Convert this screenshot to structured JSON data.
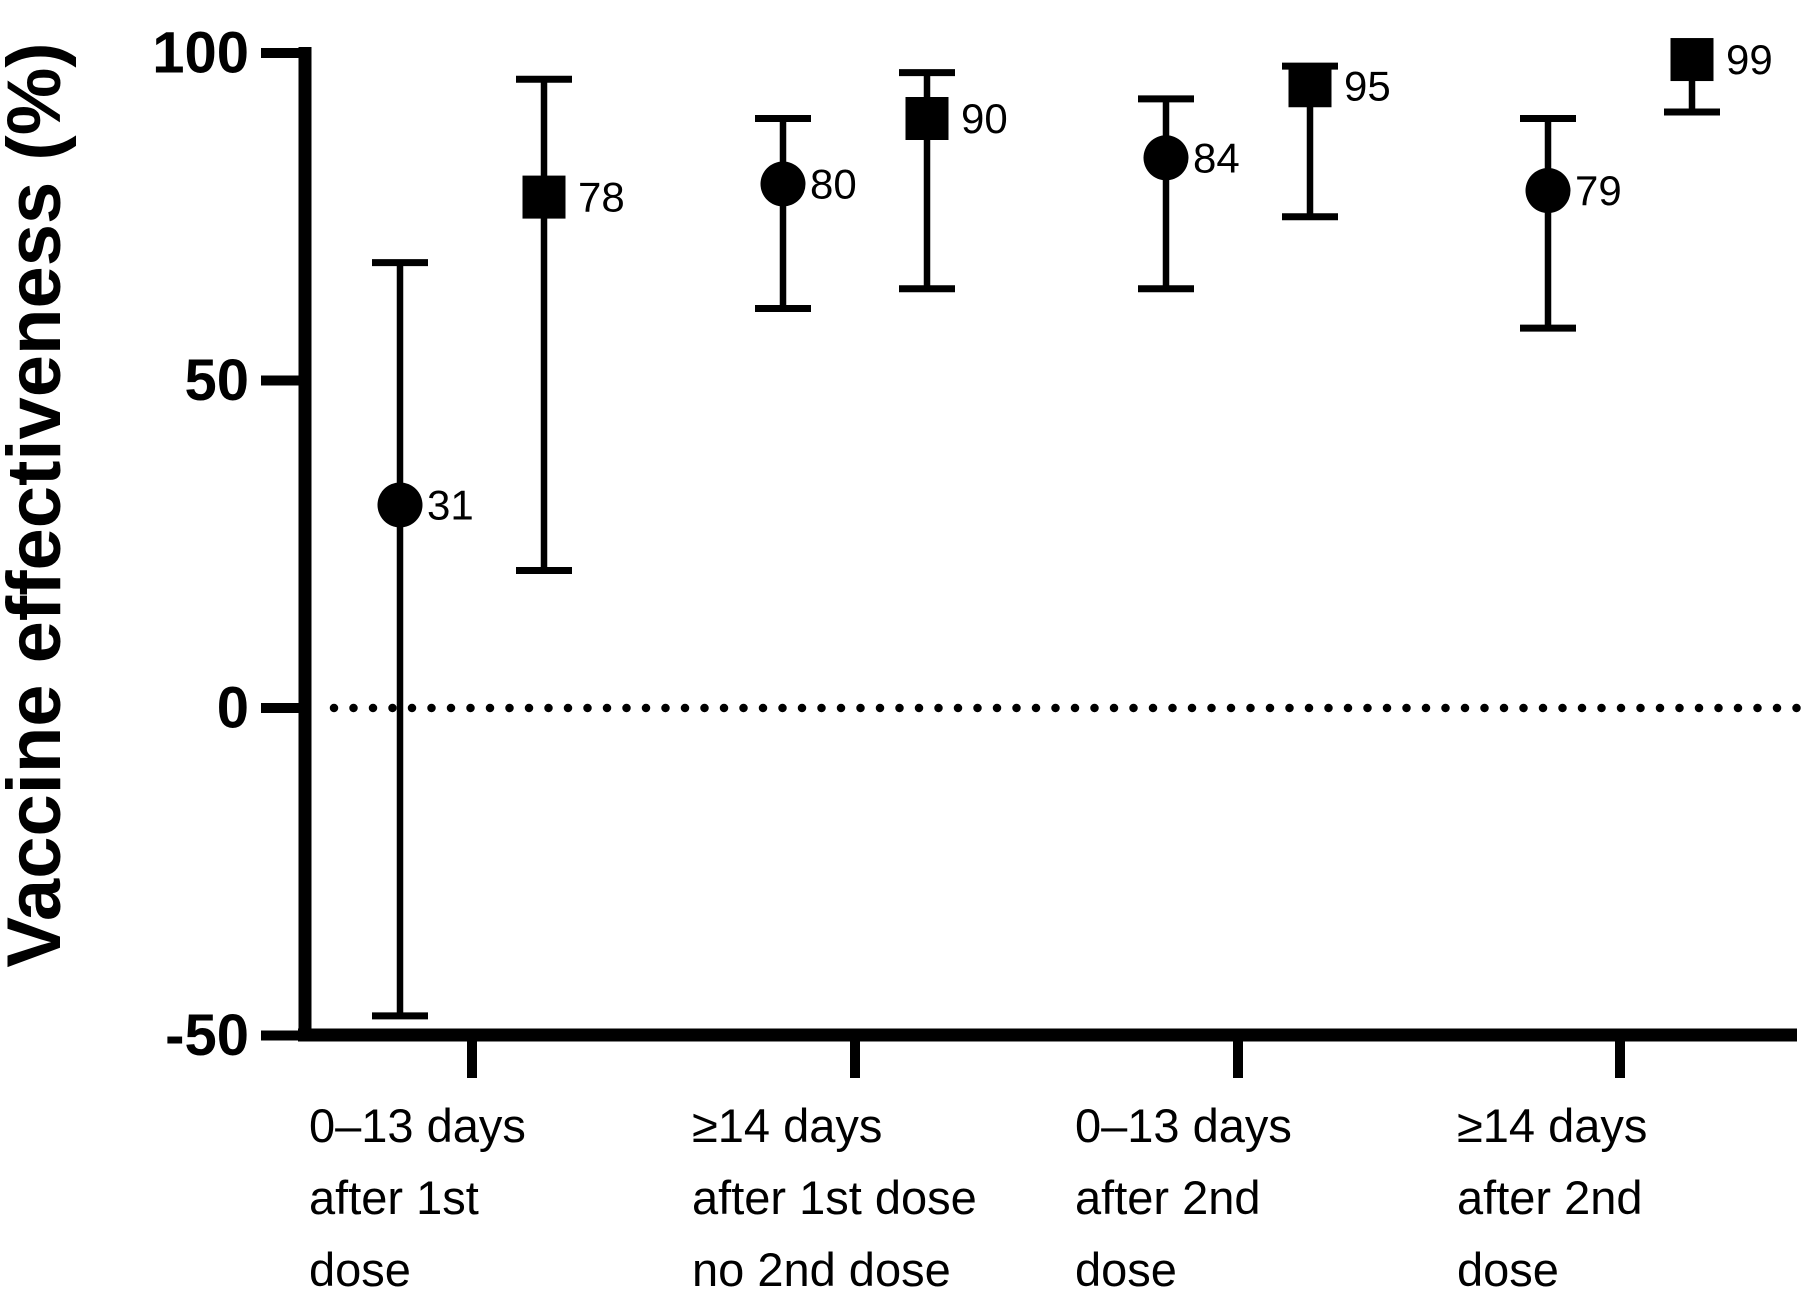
{
  "chart_data": {
    "type": "scatter",
    "subtype": "dot-and-whisker forest plot with 95% CI error bars",
    "title": "",
    "xlabel": "",
    "ylabel": "Vaccine effectiveness (%)",
    "ylim": [
      -50,
      100
    ],
    "grid": false,
    "legend": "none",
    "zero_reference_line": {
      "value": 0,
      "style": "dotted"
    },
    "yticks": [
      {
        "value": 100,
        "label": "100"
      },
      {
        "value": 50,
        "label": "50"
      },
      {
        "value": 0,
        "label": "0"
      },
      {
        "value": -50,
        "label": "-50"
      }
    ],
    "categories": [
      {
        "id": "0-13-days-after-1st-dose",
        "lines": [
          "0–13 days",
          "after 1st",
          "dose"
        ]
      },
      {
        "id": "14plus-days-after-1st-dose",
        "lines": [
          "≥14 days",
          "after 1st dose",
          "no 2nd dose"
        ]
      },
      {
        "id": "0-13-days-after-2nd-dose",
        "lines": [
          "0–13 days",
          "after 2nd",
          "dose"
        ]
      },
      {
        "id": "14plus-days-after-2nd-dose",
        "lines": [
          "≥14 days",
          "after 2nd",
          "dose"
        ]
      }
    ],
    "series": [
      {
        "name": "circle-marker-series",
        "marker": "circle",
        "points": [
          {
            "category": 0,
            "value": 31,
            "ci_low": -47,
            "ci_high": 68,
            "label": "31"
          },
          {
            "category": 1,
            "value": 80,
            "ci_low": 61,
            "ci_high": 90,
            "label": "80"
          },
          {
            "category": 2,
            "value": 84,
            "ci_low": 64,
            "ci_high": 93,
            "label": "84"
          },
          {
            "category": 3,
            "value": 79,
            "ci_low": 58,
            "ci_high": 90,
            "label": "79"
          }
        ]
      },
      {
        "name": "square-marker-series",
        "marker": "square",
        "points": [
          {
            "category": 0,
            "value": 78,
            "ci_low": 21,
            "ci_high": 96,
            "label": "78"
          },
          {
            "category": 1,
            "value": 90,
            "ci_low": 64,
            "ci_high": 97,
            "label": "90"
          },
          {
            "category": 2,
            "value": 95,
            "ci_low": 75,
            "ci_high": 98,
            "label": "95"
          },
          {
            "category": 3,
            "value": 99,
            "ci_low": 91,
            "ci_high": 100,
            "label": "99"
          }
        ]
      }
    ],
    "colors": {
      "foreground": "#000000",
      "background": "#ffffff"
    }
  }
}
